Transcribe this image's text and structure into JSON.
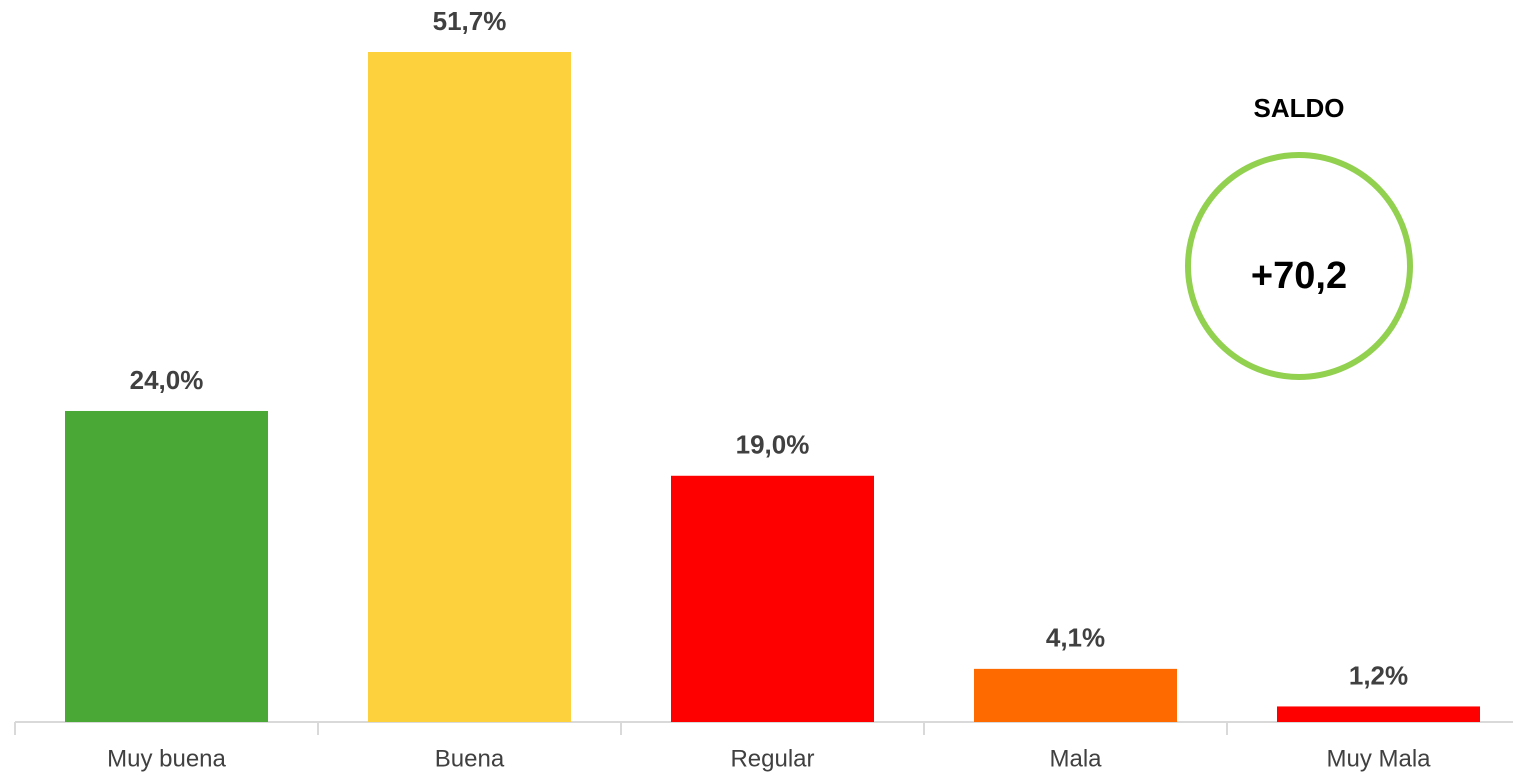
{
  "chart_data": {
    "type": "bar",
    "categories": [
      "Muy buena",
      "Buena",
      "Regular",
      "Mala",
      "Muy Mala"
    ],
    "values": [
      24.0,
      51.7,
      19.0,
      4.1,
      1.2
    ],
    "value_labels": [
      "24,0%",
      "51,7%",
      "19,0%",
      "4,1%",
      "1,2%"
    ],
    "colors": [
      "#4aa836",
      "#fdd03e",
      "#ff0000",
      "#ff6a00",
      "#ff0000"
    ],
    "annotations": {
      "title": "SALDO",
      "value": "+70,2",
      "color": "#92d050"
    }
  }
}
